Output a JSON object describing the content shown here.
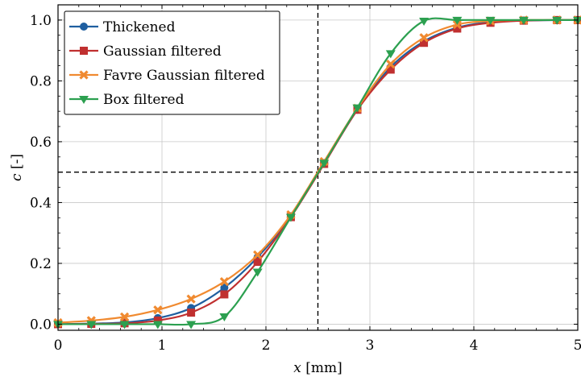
{
  "chart_data": {
    "type": "line",
    "xlabel_var": "x",
    "xlabel_unit": " [mm]",
    "ylabel_var": "c",
    "ylabel_unit": " [-]",
    "xlim": [
      0,
      5
    ],
    "ylim": [
      -0.02,
      1.05
    ],
    "xticks": [
      0,
      1,
      2,
      3,
      4,
      5
    ],
    "xtick_labels": [
      "0",
      "1",
      "2",
      "3",
      "4",
      "5"
    ],
    "yticks": [
      0.0,
      0.2,
      0.4,
      0.6,
      0.8,
      1.0
    ],
    "ytick_labels": [
      "0.0",
      "0.2",
      "0.4",
      "0.6",
      "0.8",
      "1.0"
    ],
    "grid": true,
    "legend_position": "top-left",
    "reference_lines": {
      "x": 2.5,
      "y": 0.5
    },
    "series": [
      {
        "name": "Thickened",
        "color": "#1f5fa0",
        "marker": "circle",
        "x": [
          0,
          0.32,
          0.64,
          0.96,
          1.28,
          1.6,
          1.92,
          2.24,
          2.56,
          2.88,
          3.2,
          3.52,
          3.84,
          4.16,
          4.48,
          4.8,
          5.0
        ],
        "y": [
          0.0,
          0.002,
          0.006,
          0.02,
          0.053,
          0.12,
          0.22,
          0.355,
          0.53,
          0.705,
          0.845,
          0.93,
          0.975,
          0.993,
          0.998,
          1.0,
          1.0
        ]
      },
      {
        "name": "Gaussian filtered",
        "color": "#c03030",
        "marker": "square",
        "x": [
          0,
          0.32,
          0.64,
          0.96,
          1.28,
          1.6,
          1.92,
          2.24,
          2.56,
          2.88,
          3.2,
          3.52,
          3.84,
          4.16,
          4.48,
          4.8,
          5.0
        ],
        "y": [
          0.0,
          0.001,
          0.003,
          0.012,
          0.038,
          0.098,
          0.205,
          0.352,
          0.527,
          0.705,
          0.837,
          0.925,
          0.972,
          0.991,
          0.998,
          1.0,
          1.0
        ]
      },
      {
        "name": "Favre Gaussian filtered",
        "color": "#f08a30",
        "marker": "x",
        "x": [
          0,
          0.32,
          0.64,
          0.96,
          1.28,
          1.6,
          1.92,
          2.24,
          2.56,
          2.88,
          3.2,
          3.52,
          3.84,
          4.16,
          4.48,
          4.8,
          5.0
        ],
        "y": [
          0.005,
          0.012,
          0.024,
          0.047,
          0.083,
          0.14,
          0.228,
          0.36,
          0.535,
          0.71,
          0.855,
          0.942,
          0.985,
          0.997,
          1.0,
          1.0,
          1.0
        ]
      },
      {
        "name": "Box filtered",
        "color": "#2ca050",
        "marker": "triangle-down",
        "x": [
          0,
          0.32,
          0.64,
          0.96,
          1.28,
          1.6,
          1.92,
          2.24,
          2.56,
          2.88,
          3.2,
          3.52,
          3.84,
          4.16,
          4.48,
          4.8,
          5.0
        ],
        "y": [
          0.0,
          0.0,
          0.0,
          0.0,
          0.0,
          0.025,
          0.172,
          0.352,
          0.53,
          0.712,
          0.89,
          0.997,
          1.0,
          1.0,
          1.0,
          1.0,
          1.0
        ]
      }
    ]
  }
}
